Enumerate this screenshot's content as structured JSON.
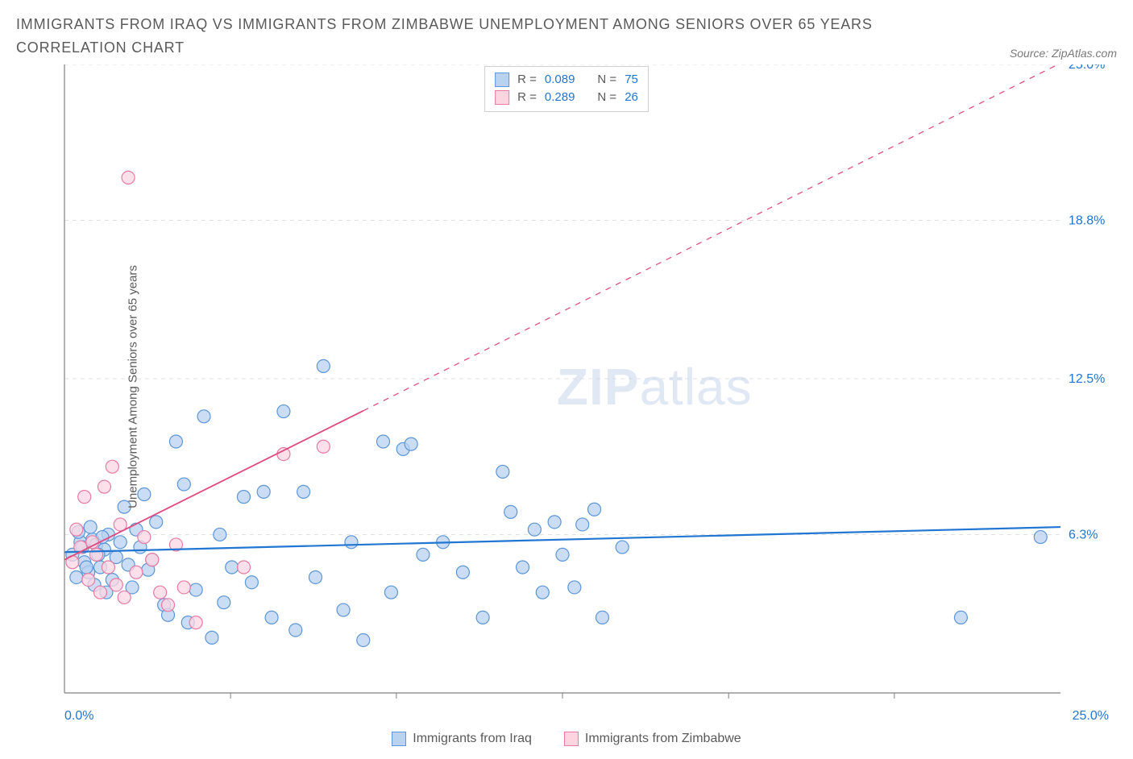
{
  "title": "IMMIGRANTS FROM IRAQ VS IMMIGRANTS FROM ZIMBABWE UNEMPLOYMENT AMONG SENIORS OVER 65 YEARS CORRELATION CHART",
  "source_label": "Source: ZipAtlas.com",
  "ylabel": "Unemployment Among Seniors over 65 years",
  "watermark_a": "ZIP",
  "watermark_b": "atlas",
  "chart": {
    "type": "scatter",
    "xlim": [
      0,
      25
    ],
    "ylim": [
      0,
      25
    ],
    "xticks_minor": [
      4.17,
      8.33,
      12.5,
      16.67,
      20.83
    ],
    "yticks": [
      6.3,
      12.5,
      18.8,
      25.0
    ],
    "ytick_labels": [
      "6.3%",
      "12.5%",
      "18.8%",
      "25.0%"
    ],
    "xmin_label": "0.0%",
    "xmax_label": "25.0%",
    "background_color": "#ffffff",
    "grid_color": "#e0e0e0",
    "axis_color": "#808080",
    "ytick_label_color": "#2176d2",
    "marker_radius": 8,
    "marker_stroke_width": 1.2,
    "series": [
      {
        "name": "Immigrants from Iraq",
        "color_fill": "#b9d2f0",
        "color_stroke": "#5a96d8",
        "r": 0.089,
        "n": 75,
        "trend": {
          "slope": 0.04,
          "intercept": 5.6,
          "color": "#2176d2",
          "width": 2.2
        },
        "points": [
          [
            0.2,
            5.5
          ],
          [
            0.4,
            6.0
          ],
          [
            0.5,
            5.2
          ],
          [
            0.6,
            4.8
          ],
          [
            0.7,
            6.1
          ],
          [
            0.8,
            5.9
          ],
          [
            0.9,
            5.0
          ],
          [
            1.0,
            5.7
          ],
          [
            1.1,
            6.3
          ],
          [
            1.2,
            4.5
          ],
          [
            1.3,
            5.4
          ],
          [
            1.4,
            6.0
          ],
          [
            1.5,
            7.4
          ],
          [
            1.6,
            5.1
          ],
          [
            1.7,
            4.2
          ],
          [
            1.8,
            6.5
          ],
          [
            1.9,
            5.8
          ],
          [
            2.0,
            7.9
          ],
          [
            2.1,
            4.9
          ],
          [
            2.2,
            5.3
          ],
          [
            2.3,
            6.8
          ],
          [
            2.5,
            3.5
          ],
          [
            2.6,
            3.1
          ],
          [
            2.8,
            10.0
          ],
          [
            3.0,
            8.3
          ],
          [
            3.1,
            2.8
          ],
          [
            3.3,
            4.1
          ],
          [
            3.5,
            11.0
          ],
          [
            3.7,
            2.2
          ],
          [
            3.9,
            6.3
          ],
          [
            4.0,
            3.6
          ],
          [
            4.2,
            5.0
          ],
          [
            4.5,
            7.8
          ],
          [
            4.7,
            4.4
          ],
          [
            5.0,
            8.0
          ],
          [
            5.2,
            3.0
          ],
          [
            5.5,
            11.2
          ],
          [
            5.8,
            2.5
          ],
          [
            6.0,
            8.0
          ],
          [
            6.3,
            4.6
          ],
          [
            6.5,
            13.0
          ],
          [
            7.0,
            3.3
          ],
          [
            7.2,
            6.0
          ],
          [
            7.5,
            2.1
          ],
          [
            8.0,
            10.0
          ],
          [
            8.2,
            4.0
          ],
          [
            8.5,
            9.7
          ],
          [
            8.7,
            9.9
          ],
          [
            9.0,
            5.5
          ],
          [
            9.5,
            6.0
          ],
          [
            10.0,
            4.8
          ],
          [
            10.5,
            3.0
          ],
          [
            11.0,
            8.8
          ],
          [
            11.2,
            7.2
          ],
          [
            11.5,
            5.0
          ],
          [
            11.8,
            6.5
          ],
          [
            12.0,
            4.0
          ],
          [
            12.3,
            6.8
          ],
          [
            12.5,
            5.5
          ],
          [
            12.8,
            4.2
          ],
          [
            13.0,
            6.7
          ],
          [
            13.3,
            7.3
          ],
          [
            13.5,
            3.0
          ],
          [
            14.0,
            5.8
          ],
          [
            22.5,
            3.0
          ],
          [
            24.5,
            6.2
          ],
          [
            0.3,
            4.6
          ],
          [
            0.35,
            6.4
          ],
          [
            0.45,
            5.8
          ],
          [
            0.55,
            5.0
          ],
          [
            0.65,
            6.6
          ],
          [
            0.75,
            4.3
          ],
          [
            0.85,
            5.5
          ],
          [
            0.95,
            6.2
          ],
          [
            1.05,
            4.0
          ]
        ]
      },
      {
        "name": "Immigrants from Zimbabwe",
        "color_fill": "#fcd5e1",
        "color_stroke": "#e87aa4",
        "r": 0.289,
        "n": 26,
        "trend": {
          "slope": 0.79,
          "intercept": 5.3,
          "color": "#e04a7e",
          "width": 1.8,
          "solid_until_x": 7.5
        },
        "points": [
          [
            0.2,
            5.2
          ],
          [
            0.3,
            6.5
          ],
          [
            0.4,
            5.8
          ],
          [
            0.5,
            7.8
          ],
          [
            0.6,
            4.5
          ],
          [
            0.7,
            6.0
          ],
          [
            0.8,
            5.5
          ],
          [
            0.9,
            4.0
          ],
          [
            1.0,
            8.2
          ],
          [
            1.1,
            5.0
          ],
          [
            1.2,
            9.0
          ],
          [
            1.3,
            4.3
          ],
          [
            1.4,
            6.7
          ],
          [
            1.5,
            3.8
          ],
          [
            1.6,
            20.5
          ],
          [
            1.8,
            4.8
          ],
          [
            2.0,
            6.2
          ],
          [
            2.2,
            5.3
          ],
          [
            2.4,
            4.0
          ],
          [
            2.6,
            3.5
          ],
          [
            2.8,
            5.9
          ],
          [
            3.0,
            4.2
          ],
          [
            3.3,
            2.8
          ],
          [
            4.5,
            5.0
          ],
          [
            5.5,
            9.5
          ],
          [
            6.5,
            9.8
          ]
        ]
      }
    ]
  },
  "stats_legend": {
    "border_color": "#cfcfcf",
    "rows": [
      {
        "swatch_fill": "#b9d2f0",
        "swatch_stroke": "#5a96d8",
        "r_label": "R =",
        "r_val": "0.089",
        "n_label": "N =",
        "n_val": "75"
      },
      {
        "swatch_fill": "#fcd5e1",
        "swatch_stroke": "#e87aa4",
        "r_label": "R =",
        "r_val": "0.289",
        "n_label": "N =",
        "n_val": "26"
      }
    ]
  },
  "bottom_legend": [
    {
      "swatch_fill": "#b9d2f0",
      "swatch_stroke": "#5a96d8",
      "label": "Immigrants from Iraq"
    },
    {
      "swatch_fill": "#fcd5e1",
      "swatch_stroke": "#e87aa4",
      "label": "Immigrants from Zimbabwe"
    }
  ]
}
